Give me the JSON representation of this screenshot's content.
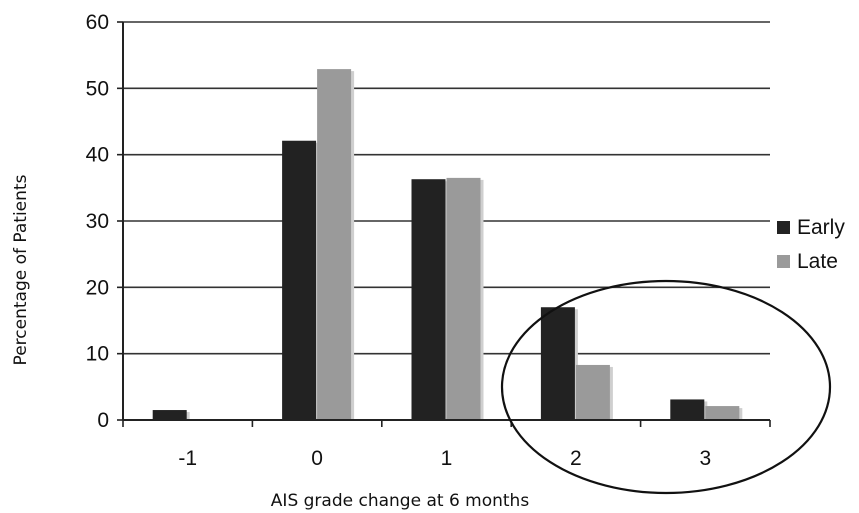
{
  "chart_data": {
    "type": "bar",
    "title": "",
    "xlabel": "AIS grade change at 6 months",
    "ylabel": "Percentage of Patients",
    "categories": [
      "-1",
      "0",
      "1",
      "2",
      "3"
    ],
    "series": [
      {
        "name": "Early",
        "values": [
          1.5,
          42.1,
          36.3,
          17.0,
          3.1
        ],
        "color": "#222222"
      },
      {
        "name": "Late",
        "values": [
          0,
          52.9,
          36.5,
          8.3,
          2.1
        ],
        "color": "#9a9a9a"
      }
    ],
    "ylim": [
      0,
      60
    ],
    "yticks": [
      0,
      10,
      20,
      30,
      40,
      50,
      60
    ],
    "grid": true,
    "legend": "right",
    "annotation": "ellipse around categories 2 and 3"
  }
}
